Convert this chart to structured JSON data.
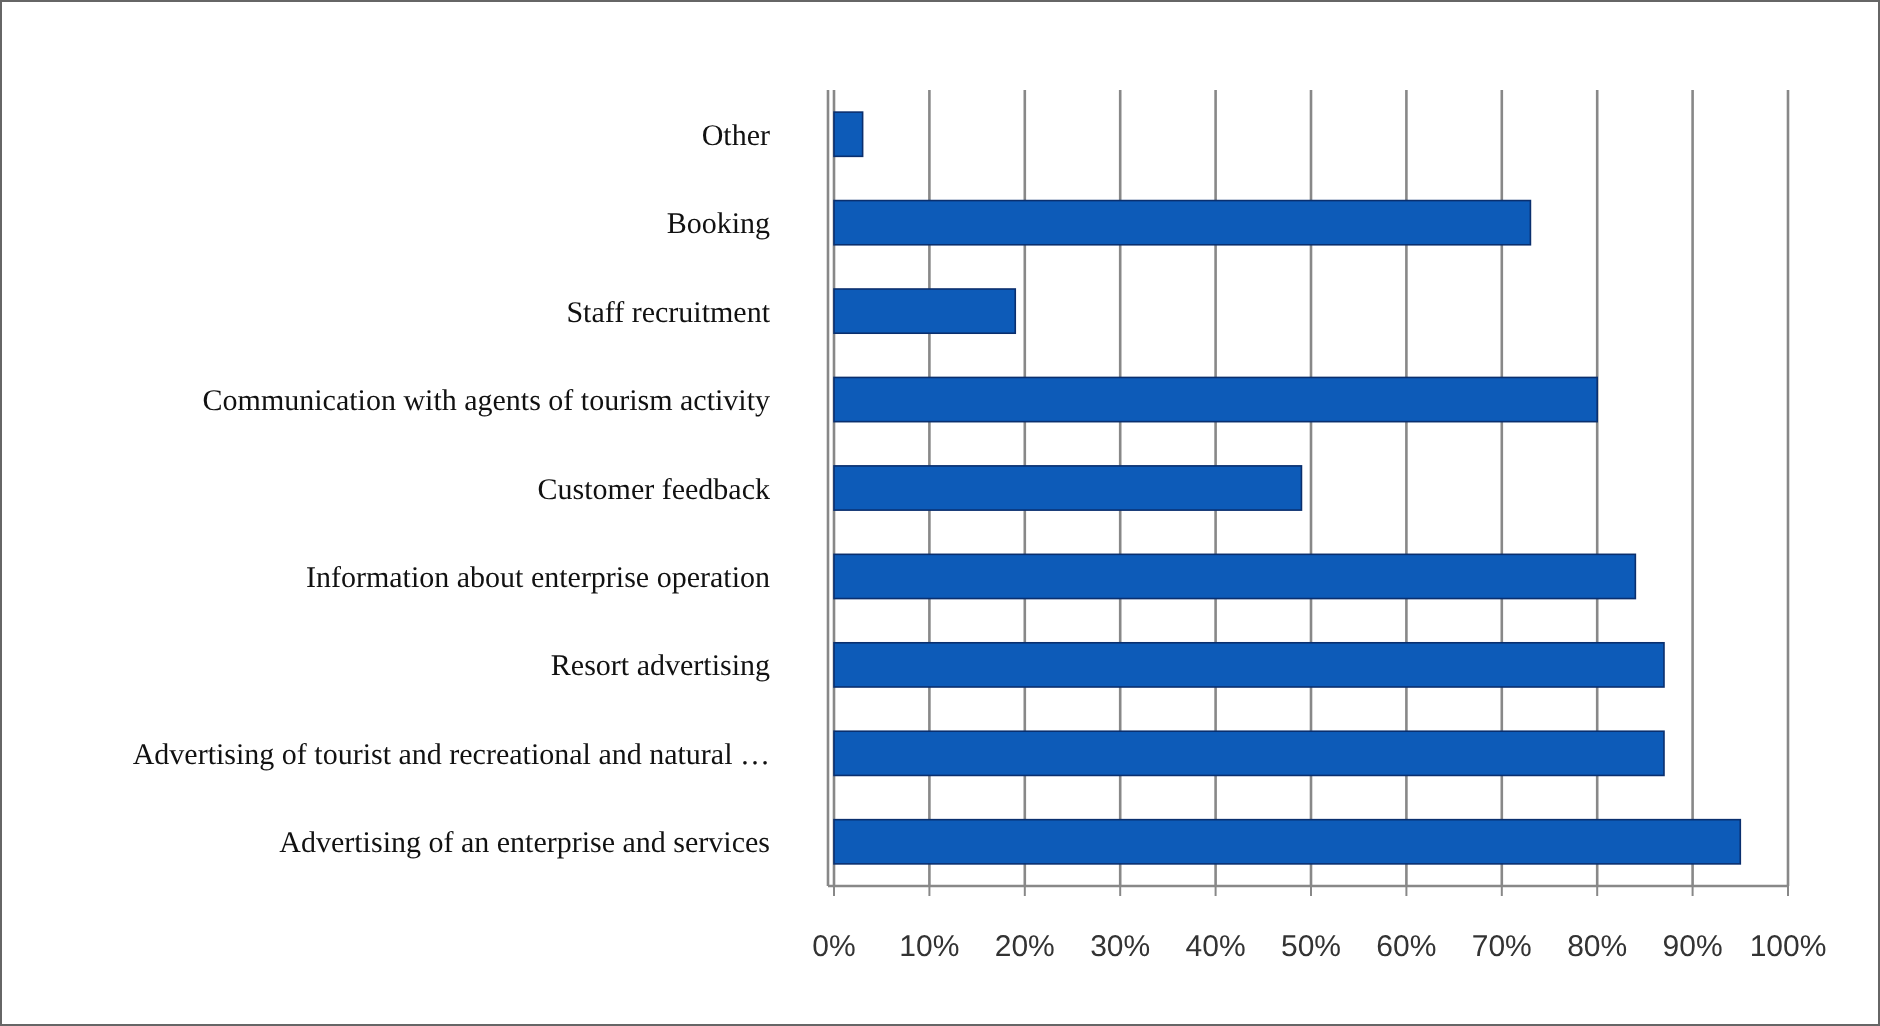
{
  "chart_data": {
    "type": "bar",
    "orientation": "horizontal",
    "categories": [
      "Other",
      "Booking",
      "Staff recruitment",
      "Communication with agents of tourism activity",
      "Customer feedback",
      "Information about enterprise operation",
      "Resort advertising",
      "Advertising of tourist and recreational and natural …",
      "Advertising of an enterprise and services"
    ],
    "values": [
      3,
      73,
      19,
      80,
      49,
      84,
      87,
      87,
      95
    ],
    "color": "#0d5bb8",
    "xlim": [
      0,
      100
    ],
    "xticks": [
      {
        "value": 0,
        "label": "0%"
      },
      {
        "value": 10,
        "label": "10%"
      },
      {
        "value": 20,
        "label": "20%"
      },
      {
        "value": 30,
        "label": "30%"
      },
      {
        "value": 40,
        "label": "40%"
      },
      {
        "value": 50,
        "label": "50%"
      },
      {
        "value": 60,
        "label": "60%"
      },
      {
        "value": 70,
        "label": "70%"
      },
      {
        "value": 80,
        "label": "80%"
      },
      {
        "value": 90,
        "label": "90%"
      },
      {
        "value": 100,
        "label": "100%"
      }
    ],
    "grid": "x"
  }
}
